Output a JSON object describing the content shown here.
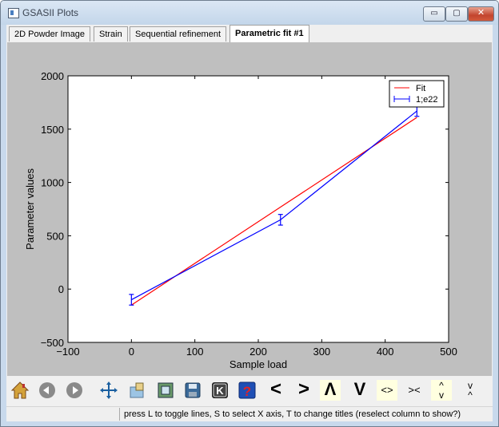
{
  "window": {
    "title": "GSASII Plots",
    "min_label": "▭",
    "max_label": "▢",
    "close_label": "✕"
  },
  "tabs": [
    {
      "label": "2D Powder Image",
      "active": false
    },
    {
      "label": "Strain",
      "active": false
    },
    {
      "label": "Sequential refinement",
      "active": false
    },
    {
      "label": "Parametric fit #1",
      "active": true
    }
  ],
  "toolbar": {
    "tools": [
      {
        "name": "home-icon",
        "glyph": ""
      },
      {
        "name": "back-icon",
        "glyph": ""
      },
      {
        "name": "forward-icon",
        "glyph": ""
      },
      {
        "name": "pan-icon",
        "glyph": ""
      },
      {
        "name": "zoom-icon",
        "glyph": ""
      },
      {
        "name": "subplots-icon",
        "glyph": ""
      },
      {
        "name": "save-icon",
        "glyph": ""
      },
      {
        "name": "keypress-icon",
        "glyph": "K"
      },
      {
        "name": "help-icon",
        "glyph": "?"
      },
      {
        "name": "shift-left-icon",
        "glyph": "<"
      },
      {
        "name": "shift-right-icon",
        "glyph": ">"
      },
      {
        "name": "shift-up-icon",
        "glyph": "Λ"
      },
      {
        "name": "shift-down-icon",
        "glyph": "V"
      },
      {
        "name": "expand-x-icon",
        "glyph": "<>"
      },
      {
        "name": "shrink-x-icon",
        "glyph": "><"
      },
      {
        "name": "expand-y-icon",
        "glyph": "^ v"
      },
      {
        "name": "shrink-y-icon",
        "glyph": "v ^"
      }
    ]
  },
  "status": {
    "text": "press L to toggle lines, S to select X axis, T to change titles (reselect column to show?)"
  },
  "chart_data": {
    "type": "line",
    "xlabel": "Sample load",
    "ylabel": "Parameter values",
    "xlim": [
      -100,
      500
    ],
    "ylim": [
      -500,
      2000
    ],
    "xticks": [
      -100,
      0,
      100,
      200,
      300,
      400,
      500
    ],
    "yticks": [
      -500,
      0,
      500,
      1000,
      1500,
      2000
    ],
    "xtick_labels": [
      "−100",
      "0",
      "100",
      "200",
      "300",
      "400",
      "500"
    ],
    "ytick_labels": [
      "−500",
      "0",
      "500",
      "1000",
      "1500",
      "2000"
    ],
    "grid": false,
    "legend_position": "top-right",
    "series": [
      {
        "name": "Fit",
        "color": "#ff0000",
        "x": [
          0,
          450
        ],
        "y": [
          -150,
          1610
        ]
      },
      {
        "name": "1;e22",
        "color": "#0000ff",
        "x": [
          0,
          235,
          450
        ],
        "y": [
          -100,
          650,
          1670
        ],
        "yerr": [
          50,
          50,
          50
        ]
      }
    ]
  }
}
